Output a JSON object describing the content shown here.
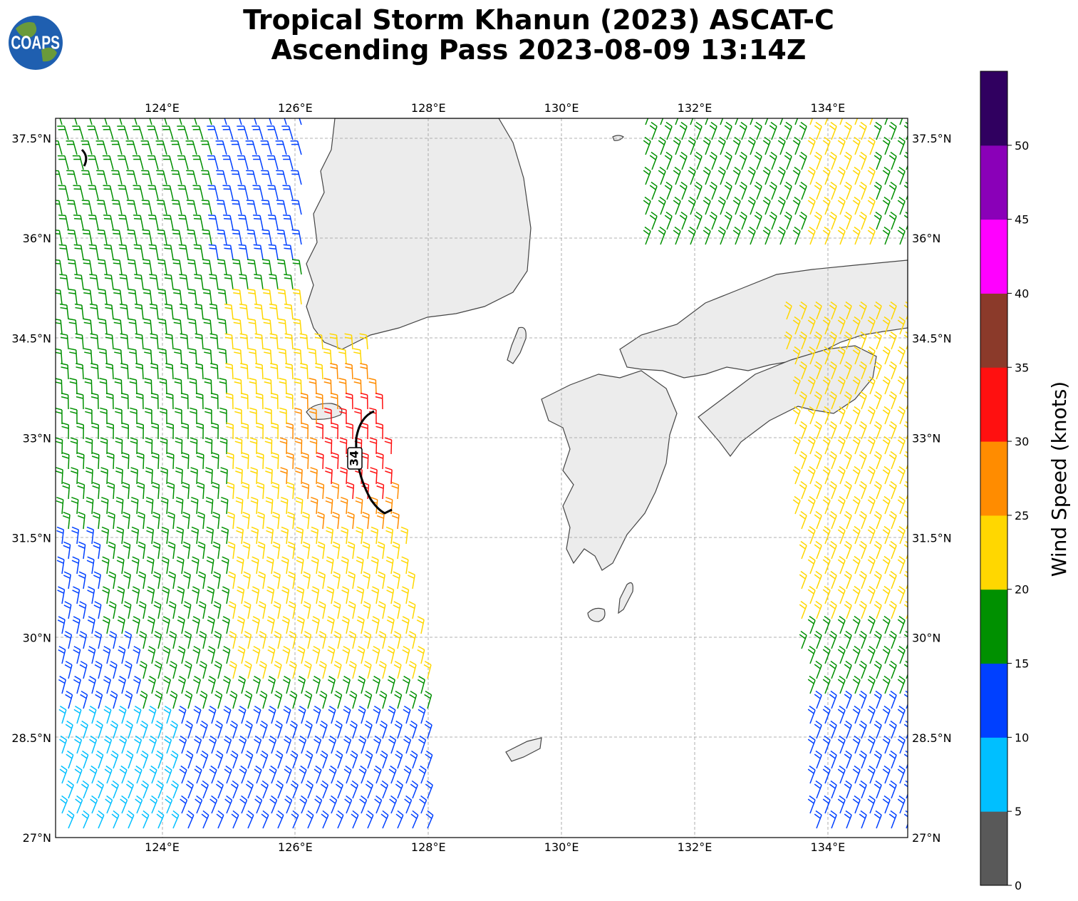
{
  "title": {
    "line1": "Tropical Storm Khanun (2023) ASCAT-C",
    "line2": "Ascending Pass 2023-08-09 13:14Z"
  },
  "logo": {
    "text": "COAPS",
    "icon": "globe-logo-icon"
  },
  "map": {
    "lon_range": [
      122.4,
      135.2
    ],
    "lat_range": [
      27.0,
      37.8
    ],
    "x_ticks": [
      "124°E",
      "126°E",
      "128°E",
      "130°E",
      "132°E",
      "134°E"
    ],
    "x_tick_values": [
      124,
      126,
      128,
      130,
      132,
      134
    ],
    "y_ticks": [
      "27°N",
      "28.5°N",
      "30°N",
      "31.5°N",
      "33°N",
      "34.5°N",
      "36°N",
      "37.5°N"
    ],
    "y_tick_values": [
      27,
      28.5,
      30,
      31.5,
      33,
      34.5,
      36,
      37.5
    ],
    "grid": true,
    "contour_label": "34"
  },
  "colorbar": {
    "label": "Wind Speed (knots)",
    "ticks": [
      "0",
      "5",
      "10",
      "15",
      "20",
      "25",
      "30",
      "35",
      "40",
      "45",
      "50"
    ],
    "colors": [
      "#595959",
      "#00bfff",
      "#0040ff",
      "#009000",
      "#ffd700",
      "#ff8c00",
      "#ff1010",
      "#8b3a2a",
      "#ff00ff",
      "#8a00b8",
      "#300060"
    ]
  }
}
